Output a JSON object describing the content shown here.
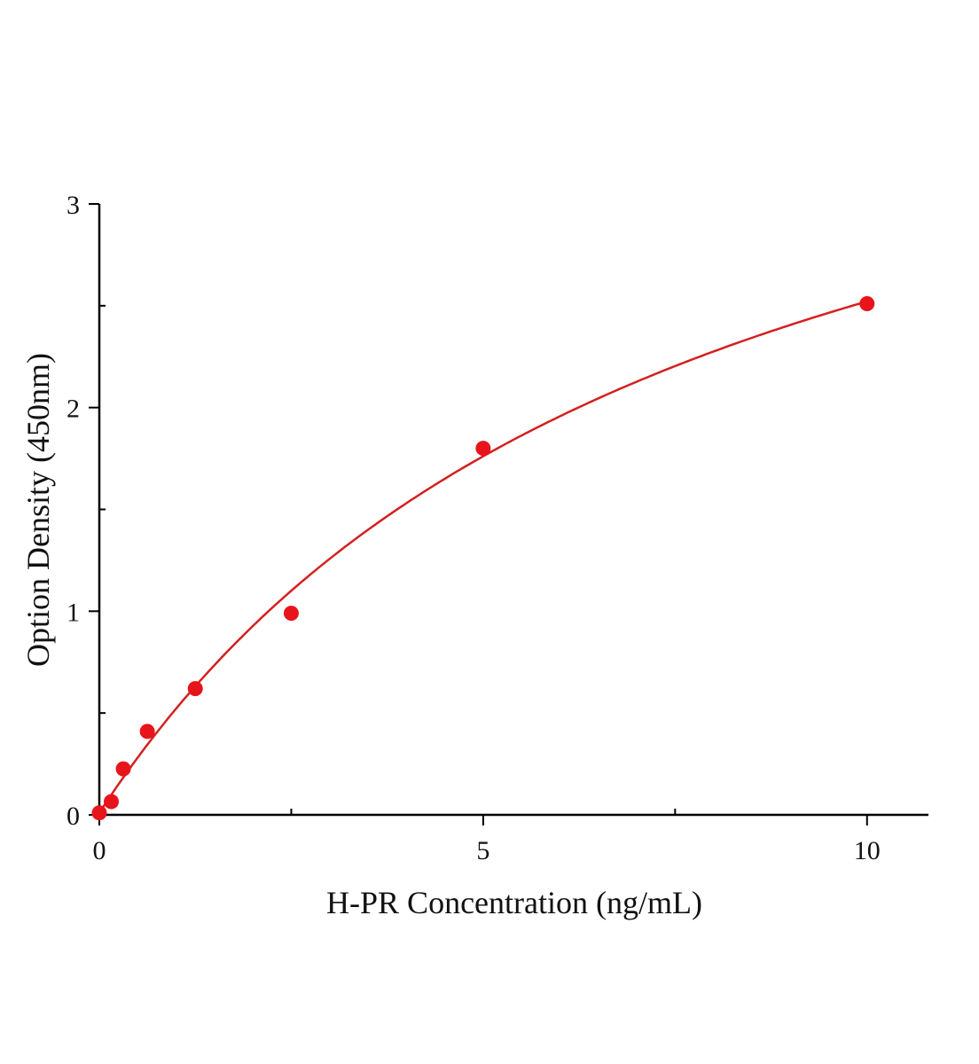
{
  "chart_data": {
    "type": "scatter",
    "title": "",
    "xlabel": "H-PR Concentration (ng/mL)",
    "ylabel": "Option Density (450nm)",
    "xlim": [
      0,
      10.8
    ],
    "ylim": [
      0,
      3
    ],
    "xticks": [
      0,
      5,
      10
    ],
    "yticks": [
      0,
      1,
      2,
      3
    ],
    "x_minor_ticks": [
      2.5,
      7.5
    ],
    "y_minor_ticks": [
      0.5,
      1.5,
      2.5
    ],
    "grid": false,
    "colors": {
      "points": "#e8141b",
      "curve": "#d42020",
      "axes": "#000000"
    },
    "series": [
      {
        "x": [
          0,
          0.156,
          0.3125,
          0.625,
          1.25,
          2.5,
          5,
          10
        ],
        "y": [
          0.01,
          0.065,
          0.226,
          0.41,
          0.62,
          0.99,
          1.8,
          2.51
        ],
        "fit_curve": true
      }
    ]
  }
}
